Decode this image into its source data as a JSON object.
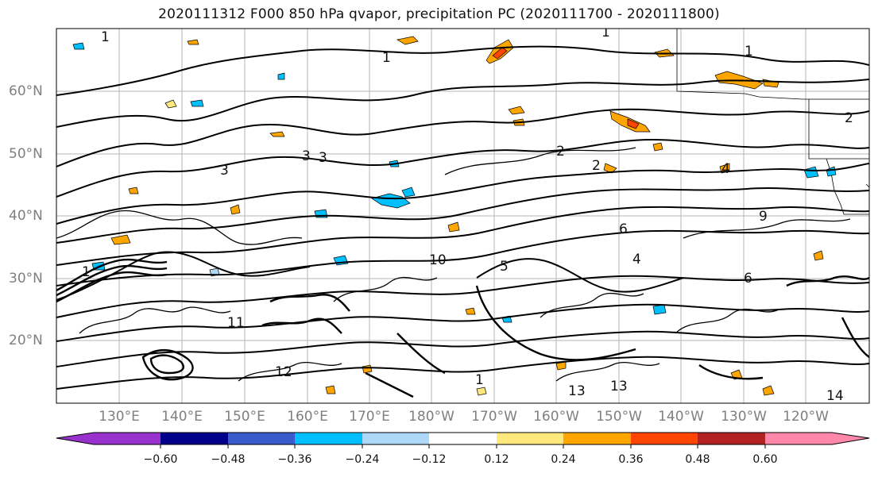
{
  "title": "2020111312 F000 850 hPa qvapor, precipitation PC (2020111700 - 2020111800)",
  "map": {
    "lat_labels": [
      "60°N",
      "50°N",
      "40°N",
      "30°N",
      "20°N"
    ],
    "lon_labels": [
      "130°E",
      "140°E",
      "150°E",
      "160°E",
      "170°E",
      "180°W",
      "170°W",
      "160°W",
      "150°W",
      "140°W",
      "130°W",
      "120°W"
    ],
    "contour_labels": [
      "1",
      "1",
      "1",
      "1",
      "1",
      "1",
      "2",
      "2",
      "2",
      "3",
      "3",
      "3",
      "4",
      "4",
      "5",
      "6",
      "6",
      "9",
      "10",
      "13",
      "13",
      "14",
      "11",
      "12"
    ]
  },
  "colorbar": {
    "tick_labels": [
      "−0.60",
      "−0.48",
      "−0.36",
      "−0.24",
      "−0.12",
      "0.12",
      "0.24",
      "0.36",
      "0.48",
      "0.60"
    ],
    "colors": [
      "#9932cc",
      "#00008b",
      "#3a5bcc",
      "#00bfff",
      "#add8f8",
      "#ffffff",
      "#ffe87c",
      "#ffa500",
      "#ff4500",
      "#b22222",
      "#ff88aa"
    ]
  }
}
